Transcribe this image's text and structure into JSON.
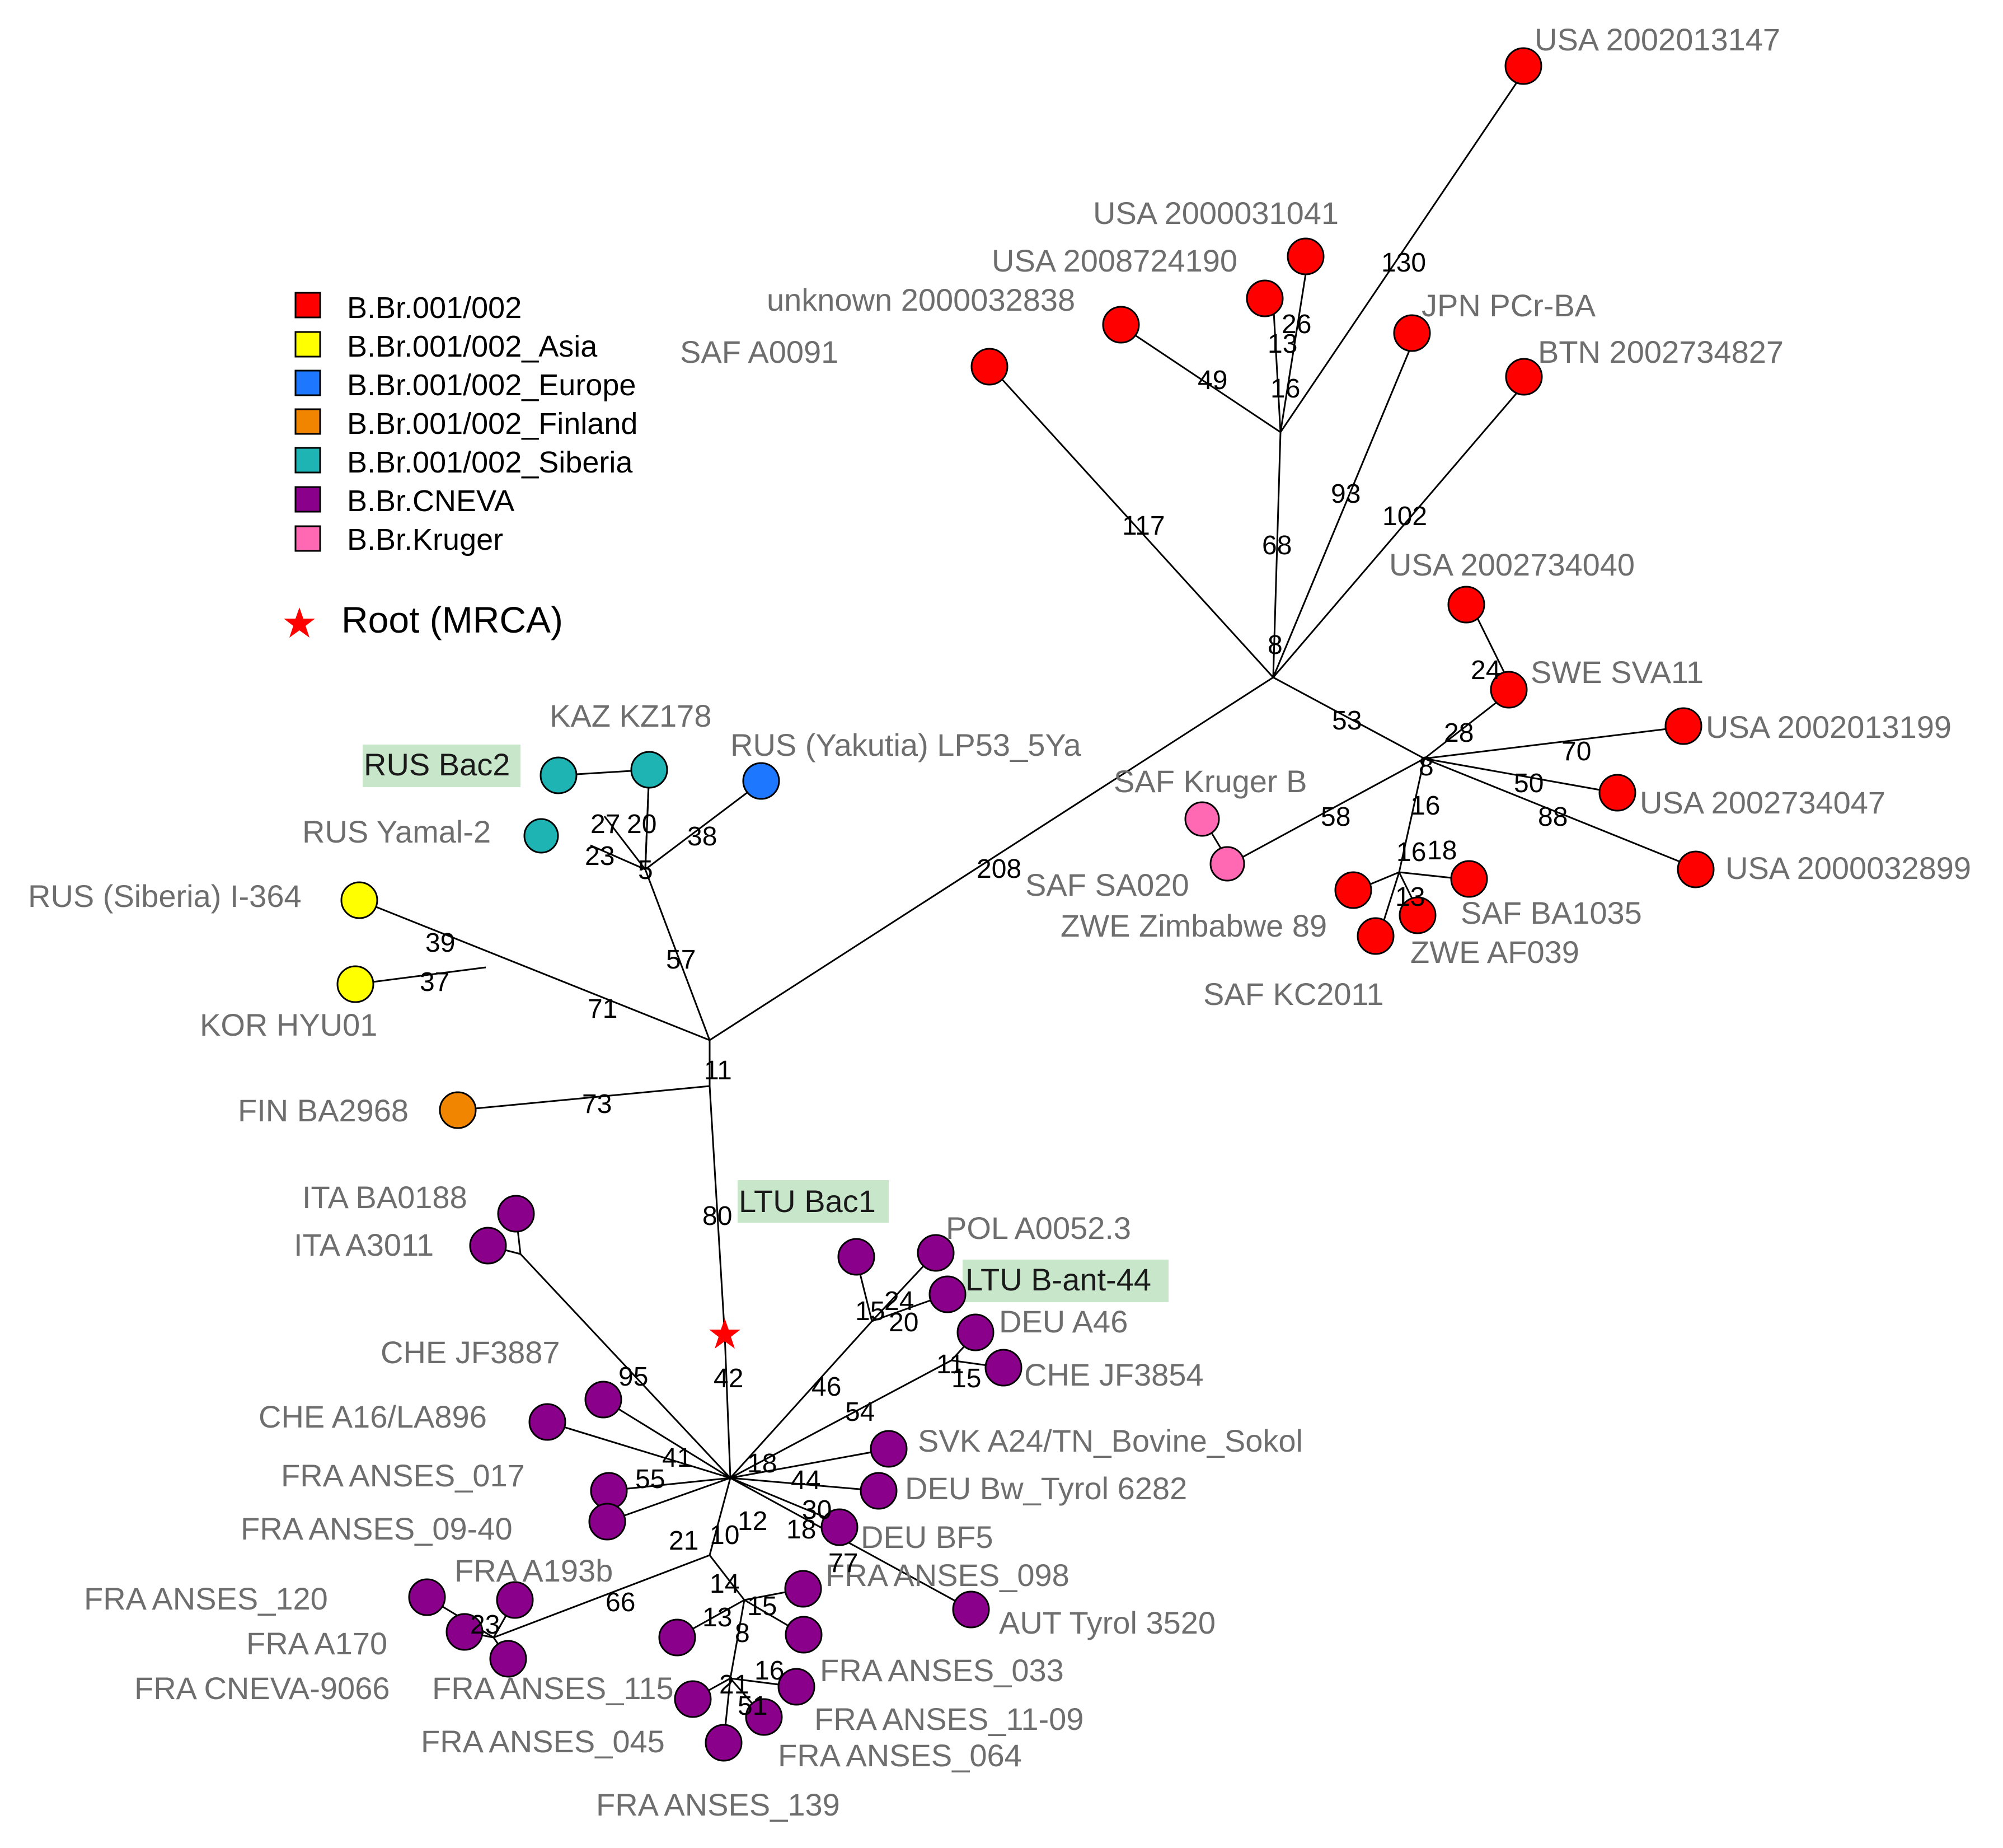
{
  "legend": {
    "items": [
      {
        "label": "B.Br.001/002",
        "color": "#ff0000"
      },
      {
        "label": "B.Br.001/002_Asia",
        "color": "#ffff00"
      },
      {
        "label": "B.Br.001/002_Europe",
        "color": "#1e78ff"
      },
      {
        "label": "B.Br.001/002_Finland",
        "color": "#f28500"
      },
      {
        "label": "B.Br.001/002_Siberia",
        "color": "#1eb4b4"
      },
      {
        "label": "B.Br.CNEVA",
        "color": "#8b008b"
      },
      {
        "label": "B.Br.Kruger",
        "color": "#ff69b4"
      }
    ],
    "root_label": "Root (MRCA)",
    "root_color": "#ff0000"
  },
  "strains": {
    "usa_2002013147": "USA 2002013147",
    "usa_2000031041": "USA 2000031041",
    "usa_2008724190": "USA 2008724190",
    "unknown_2000032838": "unknown  2000032838",
    "saf_a0091": "SAF A0091",
    "jpn_pcr_ba": "JPN PCr-BA",
    "btn_2002734827": "BTN 2002734827",
    "usa_2002734040": "USA 2002734040",
    "swe_sva11": "SWE SVA11",
    "usa_2002013199": "USA 2002013199",
    "usa_2002734047": "USA 2002734047",
    "usa_2000032899": "USA 2000032899",
    "saf_kruger_b": "SAF Kruger  B",
    "saf_sa020": "SAF SA020",
    "zwe_zimbabwe_89": "ZWE Zimbabwe  89",
    "saf_ba1035": "SAF BA1035",
    "zwe_af039": "ZWE AF039",
    "saf_kc2011": "SAF KC2011",
    "kaz_kz178": "KAZ KZ178",
    "rus_bac2": "RUS  Bac2",
    "rus_yakutia": "RUS  (Yakutia)  LP53_5Ya",
    "rus_yamal2": "RUS  Yamal-2",
    "rus_siberia": "RUS  (Siberia)  I-364",
    "kor_hyu01": "KOR HYU01",
    "fin_ba2968": "FIN  BA2968",
    "ltu_bac1": "LTU  Bac1",
    "ita_ba0188": "ITA  BA0188",
    "ita_a3011": "ITA  A3011",
    "pol_a0052": "POL  A0052.3",
    "ltu_bant44": "LTU  B-ant-44",
    "deu_a46": "DEU  A46",
    "che_jf3887": "CHE  JF3887",
    "che_jf3854": "CHE  JF3854",
    "che_a16": "CHE  A16/LA896",
    "svk_a24": "SVK A24/TN_Bovine_Sokol",
    "fra_anses_017": "FRA ANSES_017",
    "deu_bw_tyrol": "DEU  Bw_Tyrol  6282",
    "fra_anses_0940": "FRA ANSES_09-40",
    "deu_bf5": "DEU  BF5",
    "fra_a193b": "FRA A193b",
    "fra_anses_098": "FRA ANSES_098",
    "fra_anses_120": "FRA ANSES_120",
    "aut_tyrol": "AUT  Tyrol  3520",
    "fra_a170": "FRA A170",
    "fra_cneva": "FRA CNEVA-9066",
    "fra_anses_115": "FRA ANSES_115",
    "fra_anses_033": "FRA ANSES_033",
    "fra_anses_1109": "FRA ANSES_11-09",
    "fra_anses_045": "FRA ANSES_045",
    "fra_anses_064": "FRA ANSES_064",
    "fra_anses_139": "FRA ANSES_139"
  },
  "branch_lengths": {
    "b130": "130",
    "b26": "26",
    "b13": "13",
    "b16a": "16",
    "b49": "49",
    "b117": "117",
    "b93": "93",
    "b102": "102",
    "b68": "68",
    "b8a": "8",
    "b53": "53",
    "b24": "24",
    "b28": "28",
    "b70": "70",
    "b50": "50",
    "b88": "88",
    "b8b": "8",
    "b16b": "16",
    "b58": "58",
    "b16c": "16",
    "b18a": "18",
    "b13b": "13",
    "b208": "208",
    "b27": "27",
    "b20a": "20",
    "b23a": "23",
    "b38": "38",
    "b5": "5",
    "b57": "57",
    "b39": "39",
    "b37": "37",
    "b71": "71",
    "b11": "11",
    "b73": "73",
    "b80": "80",
    "b42": "42",
    "b15a": "15",
    "b24b": "24",
    "b20b": "20",
    "b46": "46",
    "b11b": "11",
    "b15b": "15",
    "b54": "54",
    "b95": "95",
    "b41": "41",
    "b55": "55",
    "b18b": "18",
    "b44": "44",
    "b30": "30",
    "b12": "12",
    "b18c": "18",
    "b21": "21",
    "b10": "10",
    "b77": "77",
    "b66": "66",
    "b23b": "23",
    "b14": "14",
    "b15c": "15",
    "b13c": "13",
    "b8c": "8",
    "b16d": "16",
    "b21b": "21",
    "b51": "51"
  }
}
